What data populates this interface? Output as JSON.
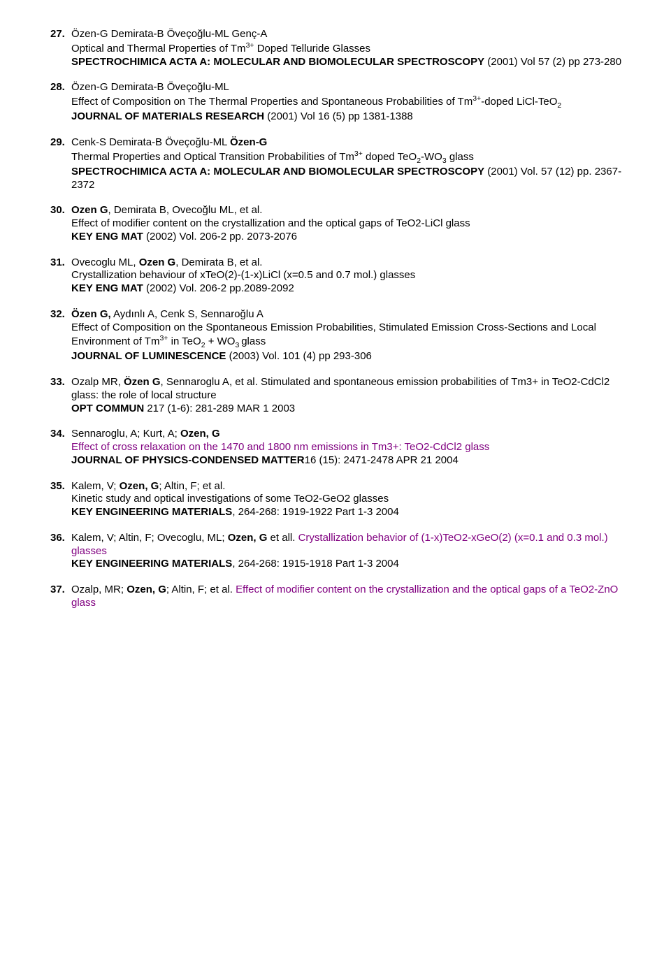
{
  "refs": [
    {
      "num": "27.",
      "lines": [
        {
          "segs": [
            {
              "t": "Özen-G Demirata-B Öveçoğlu-ML Genç-A"
            }
          ]
        },
        {
          "segs": [
            {
              "t": "Optical and Thermal Properties of Tm"
            },
            {
              "t": "3+",
              "sup": true
            },
            {
              "t": " Doped Telluride Glasses"
            }
          ]
        },
        {
          "segs": [
            {
              "t": "SPECTROCHIMICA ACTA A: MOLECULAR AND BIOMOLECULAR SPECTROSCOPY",
              "b": true
            },
            {
              "t": " (2001) Vol 57 (2) pp 273-280"
            }
          ]
        }
      ]
    },
    {
      "num": "28.",
      "lines": [
        {
          "segs": [
            {
              "t": "Özen-G Demirata-B Öveçoğlu-ML"
            }
          ]
        },
        {
          "segs": [
            {
              "t": "Effect of Composition on The Thermal Properties and Spontaneous Probabilities of Tm"
            },
            {
              "t": "3+",
              "sup": true
            },
            {
              "t": "-doped LiCl-TeO"
            },
            {
              "t": "2",
              "sub": true
            }
          ]
        },
        {
          "segs": [
            {
              "t": "JOURNAL OF MATERIALS RESEARCH",
              "b": true
            },
            {
              "t": " (2001) Vol 16 (5) pp 1381-1388"
            }
          ]
        }
      ]
    },
    {
      "num": "29.",
      "lines": [
        {
          "segs": [
            {
              "t": "Cenk-S Demirata-B Öveçoğlu-ML "
            },
            {
              "t": "Özen-G",
              "b": true
            }
          ]
        },
        {
          "segs": [
            {
              "t": "Thermal Properties and Optical Transition Probabilities of Tm"
            },
            {
              "t": "3+",
              "sup": true
            },
            {
              "t": " doped TeO"
            },
            {
              "t": "2",
              "sub": true
            },
            {
              "t": "-WO"
            },
            {
              "t": "3",
              "sub": true
            },
            {
              "t": " glass"
            }
          ]
        },
        {
          "segs": [
            {
              "t": "SPECTROCHIMICA ACTA A: MOLECULAR AND BIOMOLECULAR SPECTROSCOPY",
              "b": true
            },
            {
              "t": " (2001) Vol. 57 (12) pp. 2367-2372"
            }
          ]
        }
      ]
    },
    {
      "num": "30.",
      "lines": [
        {
          "segs": [
            {
              "t": "Ozen G",
              "b": true
            },
            {
              "t": ", Demirata B, Ovecoğlu ML, et al."
            }
          ]
        },
        {
          "segs": [
            {
              "t": "Effect of modifier content on the crystallization and the optical gaps of TeO2-LiCl glass"
            }
          ]
        },
        {
          "segs": [
            {
              "t": "KEY ENG MAT",
              "b": true
            },
            {
              "t": " (2002) Vol. 206-2 pp. 2073-2076"
            }
          ]
        }
      ]
    },
    {
      "num": "31.",
      "lines": [
        {
          "segs": [
            {
              "t": "Ovecoglu ML, "
            },
            {
              "t": "Ozen G",
              "b": true
            },
            {
              "t": ", Demirata B, et al."
            }
          ]
        },
        {
          "segs": [
            {
              "t": "Crystallization behaviour of xTeO(2)-(1-x)LiCl (x=0.5 and 0.7 mol.) glasses"
            }
          ]
        },
        {
          "segs": [
            {
              "t": "KEY ENG MAT",
              "b": true
            },
            {
              "t": " (2002) Vol. 206-2  pp.2089-2092"
            }
          ]
        }
      ]
    },
    {
      "num": "32.",
      "lines": [
        {
          "segs": [
            {
              "t": "Özen G,",
              "b": true
            },
            {
              "t": " Aydınlı A, Cenk S, Sennaroğlu A"
            }
          ]
        },
        {
          "segs": [
            {
              "t": "Effect of Composition on the Spontaneous Emission Probabilities, Stimulated Emission Cross-Sections and Local Environment of Tm"
            },
            {
              "t": "3+",
              "sup": true
            },
            {
              "t": " in TeO"
            },
            {
              "t": "2",
              "sub": true
            },
            {
              "t": " + WO"
            },
            {
              "t": "3 ",
              "sub": true
            },
            {
              "t": "glass"
            }
          ]
        },
        {
          "segs": [
            {
              "t": "JOURNAL OF  LUMINESCENCE",
              "b": true
            },
            {
              "t": " (2003) Vol. 101 (4) pp 293-306"
            }
          ]
        }
      ]
    },
    {
      "num": "33.",
      "lines": [
        {
          "segs": [
            {
              "t": "Ozalp MR, "
            },
            {
              "t": "Özen G",
              "b": true
            },
            {
              "t": ", Sennaroglu A, et al. Stimulated and spontaneous emission probabilities of Tm3+ in TeO2-CdCl2 glass: the role of local structure"
            }
          ]
        },
        {
          "segs": [
            {
              "t": "OPT COMMUN",
              "b": true
            },
            {
              "t": " 217 (1-6): 281-289 MAR 1 2003"
            }
          ]
        }
      ]
    },
    {
      "num": "34.",
      "lines": [
        {
          "segs": [
            {
              "t": "Sennaroglu, A; Kurt, A; "
            },
            {
              "t": "Ozen, G",
              "b": true
            }
          ]
        },
        {
          "segs": [
            {
              "t": "Effect of cross relaxation on the 1470 and 1800 nm emissions in Tm3+: TeO2-CdCl2 glass",
              "purple": true
            }
          ]
        },
        {
          "segs": [
            {
              "t": "JOURNAL OF PHYSICS-CONDENSED MATTER",
              "b": true
            },
            {
              "t": "16 (15): 2471-2478 APR 21 2004"
            }
          ]
        }
      ]
    },
    {
      "num": "35.",
      "lines": [
        {
          "segs": [
            {
              "t": "Kalem, V; "
            },
            {
              "t": "Ozen, G",
              "b": true
            },
            {
              "t": "; Altin, F; et al."
            }
          ]
        },
        {
          "segs": [
            {
              "t": "Kinetic study and optical investigations of some TeO2-GeO2 glasses"
            }
          ]
        },
        {
          "segs": [
            {
              "t": "KEY ENGINEERING MATERIALS",
              "b": true
            },
            {
              "t": ", 264-268: 1919-1922 Part 1-3 2004"
            }
          ]
        }
      ]
    },
    {
      "num": "36.",
      "lines": [
        {
          "segs": [
            {
              "t": "Kalem, V; Altin, F; Ovecoglu, ML; "
            },
            {
              "t": "Ozen, G",
              "b": true
            },
            {
              "t": " et all. "
            },
            {
              "t": "Crystallization behavior of (1-x)TeO2-xGeO(2) (x=0.1 and 0.3 mol.) glasses",
              "purple": true
            }
          ]
        },
        {
          "segs": [
            {
              "t": "KEY ENGINEERING MATERIALS",
              "b": true
            },
            {
              "t": ", 264-268: 1915-1918 Part 1-3 2004"
            }
          ]
        }
      ]
    },
    {
      "num": "37.",
      "lines": [
        {
          "segs": [
            {
              "t": "Ozalp, MR; "
            },
            {
              "t": "Ozen, G",
              "b": true
            },
            {
              "t": "; Altin, F; et al. "
            },
            {
              "t": "Effect of modifier content on the crystallization and the optical gaps of a TeO2-ZnO glass",
              "purple": true
            }
          ]
        }
      ]
    }
  ]
}
